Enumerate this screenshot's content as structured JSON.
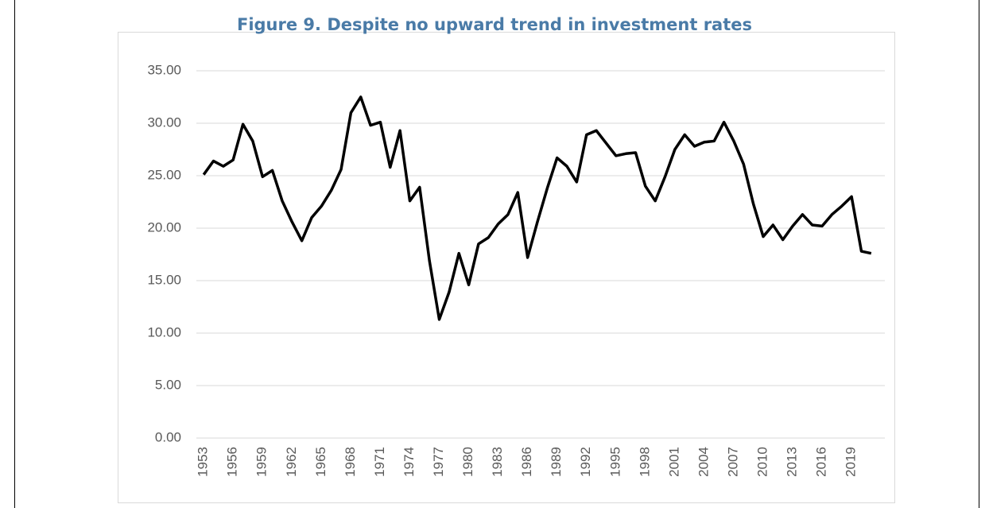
{
  "chart_data": {
    "type": "line",
    "title": "Figure 9. Despite no upward trend in investment rates",
    "categories": [
      "1953",
      null,
      null,
      "1956",
      null,
      null,
      "1959",
      null,
      null,
      "1962",
      null,
      null,
      "1965",
      null,
      null,
      "1968",
      null,
      null,
      "1971",
      null,
      null,
      "1974",
      null,
      null,
      "1977",
      null,
      null,
      "1980",
      null,
      null,
      "1983",
      null,
      null,
      "1986",
      null,
      null,
      "1989",
      null,
      null,
      "1992",
      null,
      null,
      "1995",
      null,
      null,
      "1998",
      null,
      null,
      "2001",
      null,
      null,
      "2004",
      null,
      null,
      "2007",
      null,
      null,
      "2010",
      null,
      null,
      "2013",
      null,
      null,
      "2016",
      null,
      null,
      "2019",
      null,
      null
    ],
    "values": [
      25.1,
      26.4,
      25.9,
      26.5,
      29.9,
      28.3,
      24.9,
      25.5,
      22.6,
      20.6,
      18.8,
      21.0,
      22.1,
      23.6,
      25.6,
      31.0,
      32.5,
      29.8,
      30.1,
      25.8,
      29.3,
      22.6,
      23.9,
      16.9,
      11.3,
      13.9,
      17.6,
      14.6,
      18.5,
      19.1,
      20.4,
      21.3,
      23.4,
      17.2,
      20.6,
      23.8,
      26.7,
      25.9,
      24.4,
      28.9,
      29.3,
      28.1,
      26.9,
      27.1,
      27.2,
      24.0,
      22.6,
      24.9,
      27.5,
      28.9,
      27.8,
      28.2,
      28.3,
      30.1,
      28.3,
      26.1,
      22.3,
      19.2,
      20.3,
      18.9,
      20.2,
      21.3,
      20.3,
      20.2,
      21.3,
      22.1,
      23.0,
      17.8,
      17.6
    ],
    "color": "#000000",
    "ylim": [
      0,
      35
    ],
    "yticks": [
      {
        "value": 0,
        "label": "0.00"
      },
      {
        "value": 5,
        "label": "5.00"
      },
      {
        "value": 10,
        "label": "10.00"
      },
      {
        "value": 15,
        "label": "15.00"
      },
      {
        "value": 20,
        "label": "20.00"
      },
      {
        "value": 25,
        "label": "25.00"
      },
      {
        "value": 30,
        "label": "30.00"
      },
      {
        "value": 35,
        "label": "35.00"
      }
    ],
    "grid": true
  }
}
